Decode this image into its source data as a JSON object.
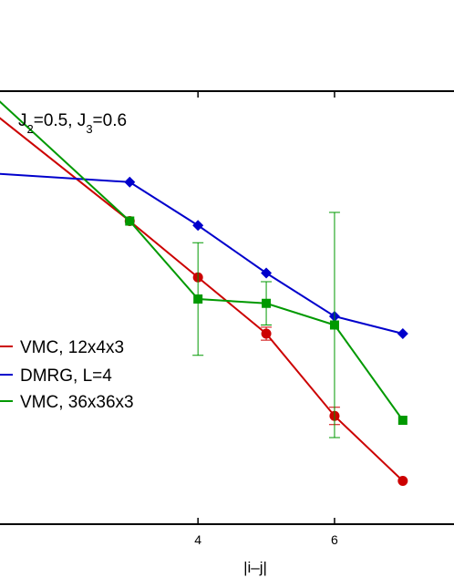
{
  "chart_data": {
    "type": "line",
    "title": "",
    "xlabel": "|i–j|",
    "ylabel": "",
    "xlim": [
      1.1,
      7.75
    ],
    "ylim": [
      0,
      1
    ],
    "xticks": [
      4,
      6
    ],
    "xtick_labels": [
      "4",
      "6"
    ],
    "grid": false,
    "legend_position": "left",
    "annotation": {
      "base1": "J",
      "sub1": "2",
      "mid": "=0.5, J",
      "sub2": "3",
      "end": "=0.6"
    },
    "series": [
      {
        "name": "VMC, 12x4x3",
        "color": "#cc0000",
        "marker": "circle",
        "x": [
          1,
          3,
          4,
          5,
          6,
          7
        ],
        "y": [
          0.95,
          0.7,
          0.57,
          0.44,
          0.25,
          0.1
        ],
        "yerr": [
          0,
          0,
          0,
          0.015,
          0.02,
          0
        ]
      },
      {
        "name": "DMRG, L=4",
        "color": "#0000cc",
        "marker": "diamond",
        "x": [
          1,
          3,
          4,
          5,
          6,
          7
        ],
        "y": [
          0.81,
          0.79,
          0.69,
          0.58,
          0.48,
          0.44
        ]
      },
      {
        "name": "VMC, 36x36x3",
        "color": "#009900",
        "marker": "square",
        "x": [
          1,
          3,
          4,
          5,
          6,
          7
        ],
        "y": [
          0.99,
          0.7,
          0.52,
          0.51,
          0.46,
          0.24
        ],
        "yerr": [
          0,
          0,
          0.13,
          0.05,
          0.26,
          0
        ]
      }
    ]
  }
}
